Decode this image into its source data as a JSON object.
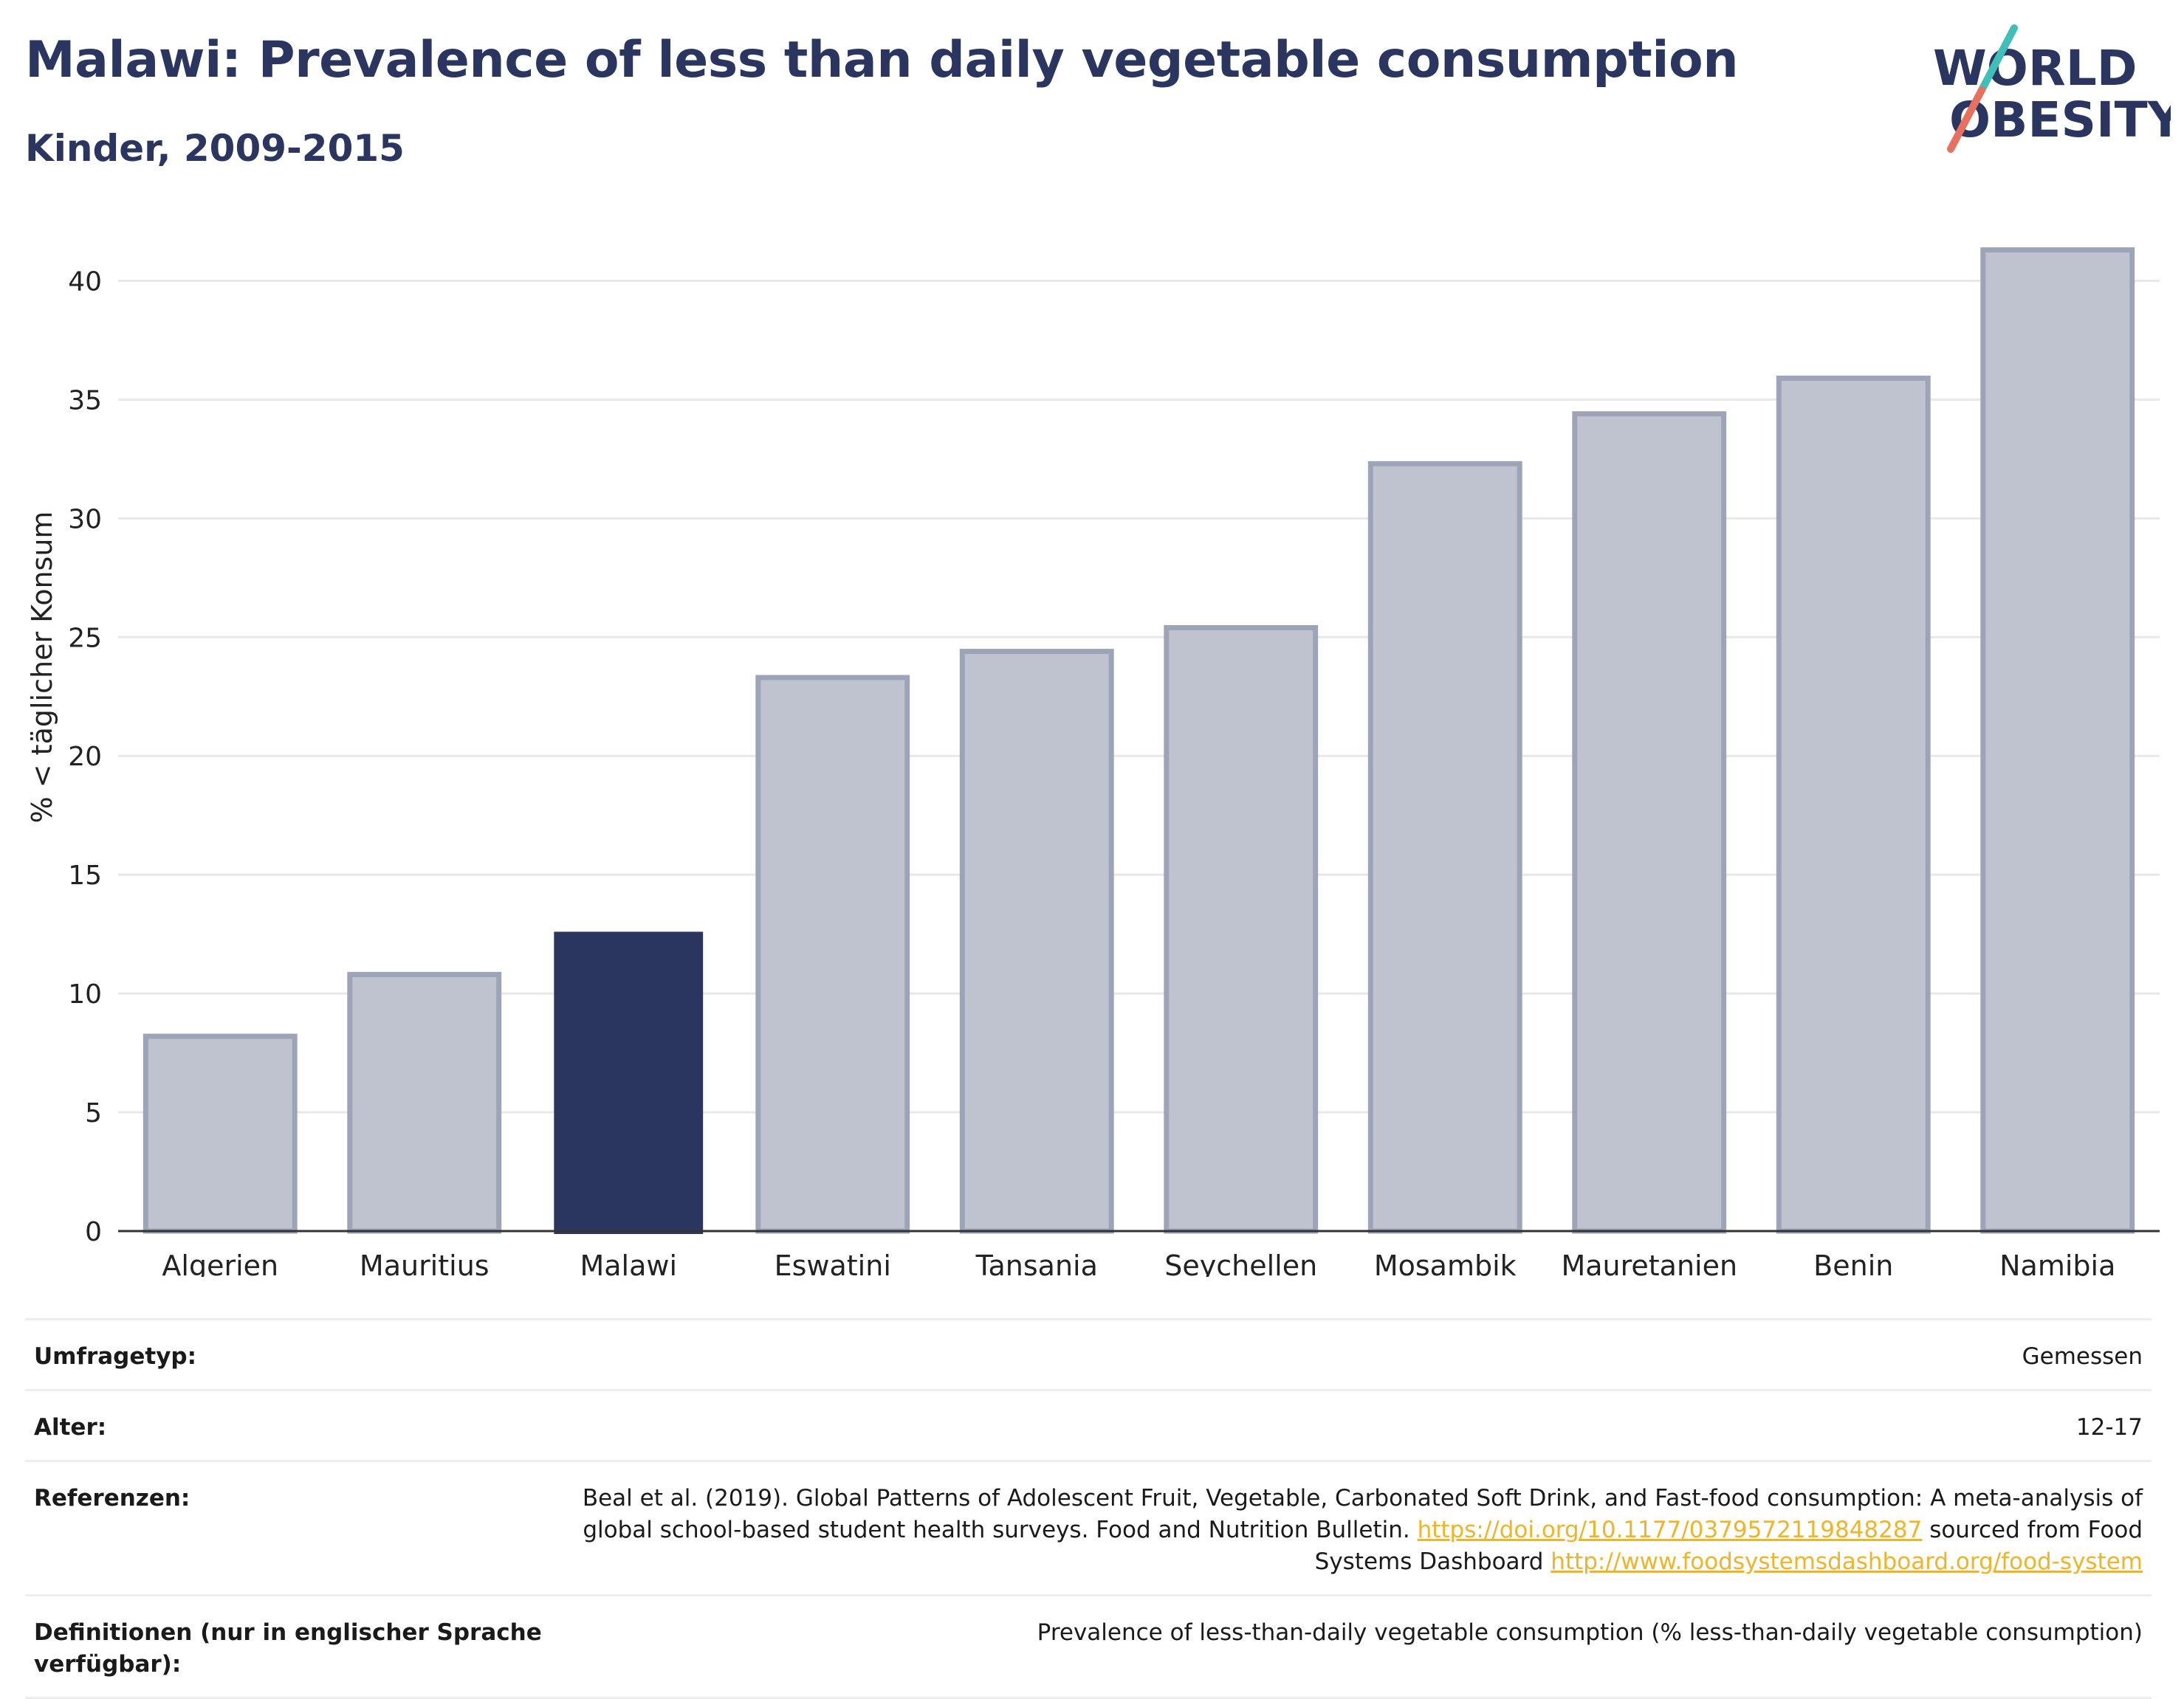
{
  "header": {
    "title": "Malawi: Prevalence of less than daily vegetable consumption",
    "subtitle": "Kinder, 2009-2015"
  },
  "logo": {
    "line1": "WORLD",
    "line2": "OBESITY"
  },
  "chart_data": {
    "type": "bar",
    "title": "Malawi: Prevalence of less than daily vegetable consumption",
    "subtitle": "Kinder, 2009-2015",
    "ylabel": "% < täglicher Konsum",
    "xlabel": "",
    "ylim": [
      0,
      42.5
    ],
    "yticks": [
      0,
      5,
      10,
      15,
      20,
      25,
      30,
      35,
      40
    ],
    "grid": true,
    "categories": [
      "Algerien",
      "Mauritius",
      "Malawi",
      "Eswatini",
      "Tansania",
      "Seychellen",
      "Mosambik",
      "Mauretanien",
      "Benin",
      "Namibia"
    ],
    "values": [
      8.2,
      10.8,
      12.6,
      23.3,
      24.4,
      25.4,
      32.3,
      34.4,
      35.9,
      41.3
    ],
    "highlight": "Malawi",
    "colors": {
      "highlight": "#2b3660",
      "default": "#bfc3d0",
      "default_border": "#9ea4b8"
    }
  },
  "meta": {
    "rows": [
      {
        "label": "Umfragetyp:",
        "value": "Gemessen"
      },
      {
        "label": "Alter:",
        "value": "12-17"
      },
      {
        "label": "Referenzen:",
        "text1": "Beal et al. (2019). Global Patterns of Adolescent Fruit, Vegetable, Carbonated Soft Drink, and Fast-food consumption: A meta-analysis of global school-based student health surveys. Food and Nutrition Bulletin.",
        "link1": "https://doi.org/10.1177/0379572119848287",
        "text2": "sourced from Food Systems Dashboard",
        "link2": "http://www.foodsystemsdashboard.org/food-system"
      },
      {
        "label": "Definitionen (nur in englischer Sprache verfügbar):",
        "value": "Prevalence of less-than-daily vegetable consumption (% less-than-daily vegetable consumption)"
      }
    ]
  }
}
